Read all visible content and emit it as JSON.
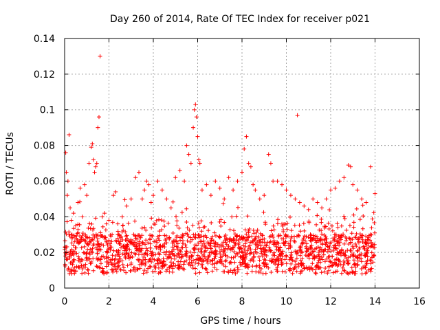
{
  "chart_data": {
    "type": "scatter",
    "title": "Day 260 of 2014, Rate Of TEC Index for receiver p021",
    "xlabel": "GPS time / hours",
    "ylabel": "ROTI / TECUs",
    "xlim": [
      0,
      16
    ],
    "ylim": [
      0,
      0.14
    ],
    "x_ticks": [
      0,
      2,
      4,
      6,
      8,
      10,
      12,
      14,
      16
    ],
    "y_ticks": [
      0,
      0.02,
      0.04,
      0.06,
      0.08,
      0.1,
      0.12,
      0.14
    ],
    "x_tick_labels": [
      "0",
      "2",
      "4",
      "6",
      "8",
      "10",
      "12",
      "14",
      "16"
    ],
    "y_tick_labels": [
      "0",
      "0.02",
      "0.04",
      "0.06",
      "0.08",
      "0.1",
      "0.12",
      "0.14"
    ],
    "grid": true,
    "marker": "+",
    "color": "#ff0000",
    "series": [
      {
        "name": "ROTI",
        "x": [
          0.05,
          0.08,
          0.12,
          0.15,
          0.2,
          0.25,
          0.3,
          0.4,
          0.5,
          0.6,
          0.7,
          0.8,
          0.9,
          1.0,
          1.1,
          1.2,
          1.25,
          1.3,
          1.35,
          1.4,
          1.45,
          1.5,
          1.55,
          1.6,
          1.7,
          1.8,
          2.0,
          2.2,
          2.3,
          2.4,
          2.6,
          2.8,
          3.0,
          3.2,
          3.35,
          3.5,
          3.6,
          3.7,
          3.8,
          3.9,
          4.0,
          4.2,
          4.4,
          4.6,
          4.8,
          5.0,
          5.2,
          5.4,
          5.5,
          5.6,
          5.7,
          5.8,
          5.85,
          5.9,
          5.95,
          6.0,
          6.05,
          6.1,
          6.2,
          6.4,
          6.6,
          6.8,
          7.0,
          7.2,
          7.4,
          7.6,
          7.8,
          8.0,
          8.1,
          8.2,
          8.3,
          8.4,
          8.5,
          8.6,
          8.8,
          9.0,
          9.2,
          9.3,
          9.4,
          9.6,
          9.8,
          10.0,
          10.2,
          10.4,
          10.5,
          10.6,
          10.8,
          11.0,
          11.2,
          11.4,
          11.6,
          11.8,
          12.0,
          12.2,
          12.4,
          12.6,
          12.8,
          12.9,
          13.0,
          13.2,
          13.4,
          13.6,
          13.8,
          14.0
        ],
        "y": [
          0.076,
          0.065,
          0.052,
          0.06,
          0.086,
          0.045,
          0.038,
          0.042,
          0.035,
          0.048,
          0.056,
          0.04,
          0.058,
          0.052,
          0.07,
          0.079,
          0.081,
          0.072,
          0.065,
          0.068,
          0.07,
          0.09,
          0.096,
          0.13,
          0.04,
          0.042,
          0.038,
          0.052,
          0.054,
          0.036,
          0.04,
          0.046,
          0.05,
          0.062,
          0.065,
          0.05,
          0.055,
          0.06,
          0.058,
          0.048,
          0.052,
          0.06,
          0.055,
          0.05,
          0.045,
          0.062,
          0.066,
          0.06,
          0.08,
          0.075,
          0.07,
          0.09,
          0.1,
          0.103,
          0.096,
          0.085,
          0.072,
          0.07,
          0.055,
          0.058,
          0.052,
          0.06,
          0.056,
          0.05,
          0.062,
          0.055,
          0.06,
          0.065,
          0.078,
          0.085,
          0.07,
          0.068,
          0.058,
          0.055,
          0.05,
          0.052,
          0.075,
          0.07,
          0.06,
          0.06,
          0.058,
          0.055,
          0.052,
          0.05,
          0.097,
          0.048,
          0.046,
          0.044,
          0.05,
          0.048,
          0.045,
          0.05,
          0.055,
          0.056,
          0.06,
          0.062,
          0.069,
          0.068,
          0.058,
          0.055,
          0.05,
          0.048,
          0.068,
          0.053
        ]
      }
    ],
    "noise": {
      "x_max": 14.0,
      "y_base_min": 0.008,
      "y_base_max": 0.03
    }
  }
}
